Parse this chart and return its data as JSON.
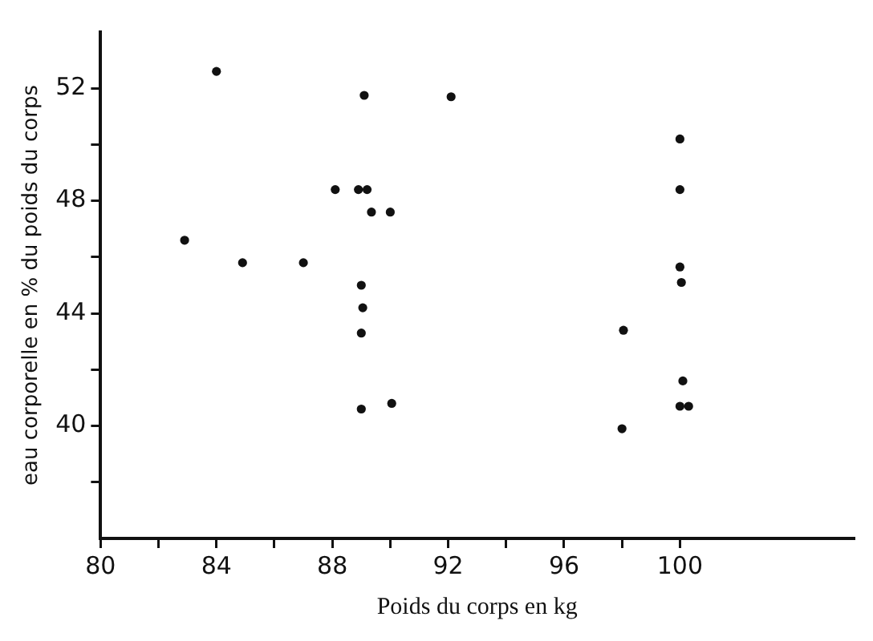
{
  "chart_data": {
    "type": "scatter",
    "xlabel": "Poids du corps en kg",
    "ylabel": "eau corporelle en % du poids du corps",
    "marker": "circle",
    "series": [
      {
        "color": "#111111",
        "x": [
          84,
          82.9,
          84.9,
          87,
          88.1,
          88.9,
          89.2,
          89.1,
          89.35,
          90,
          89,
          89.05,
          89,
          89,
          90.05,
          92.1,
          100,
          100,
          100,
          100.05,
          98.05,
          100.1,
          100,
          100.3,
          98
        ],
        "values": [
          52.6,
          46.6,
          45.8,
          45.8,
          48.4,
          48.4,
          48.4,
          51.75,
          47.6,
          47.6,
          45,
          44.2,
          43.3,
          40.6,
          40.8,
          51.7,
          50.2,
          48.4,
          45.65,
          45.1,
          43.4,
          41.6,
          40.7,
          40.7,
          39.9
        ]
      }
    ],
    "xlim": [
      80,
      106
    ],
    "ylim": [
      36,
      54
    ],
    "xticks": [
      80,
      {
        "value": 82,
        "label": null
      },
      84,
      {
        "value": 86,
        "label": null
      },
      88,
      {
        "value": 90,
        "label": null
      },
      92,
      {
        "value": 94,
        "label": null
      },
      96,
      {
        "value": 98,
        "label": null
      },
      100
    ],
    "yticks": [
      {
        "value": 38,
        "label": null
      },
      40,
      {
        "value": 42,
        "label": null
      },
      44,
      {
        "value": 46,
        "label": null
      },
      48,
      {
        "value": 50,
        "label": null
      },
      52
    ]
  }
}
